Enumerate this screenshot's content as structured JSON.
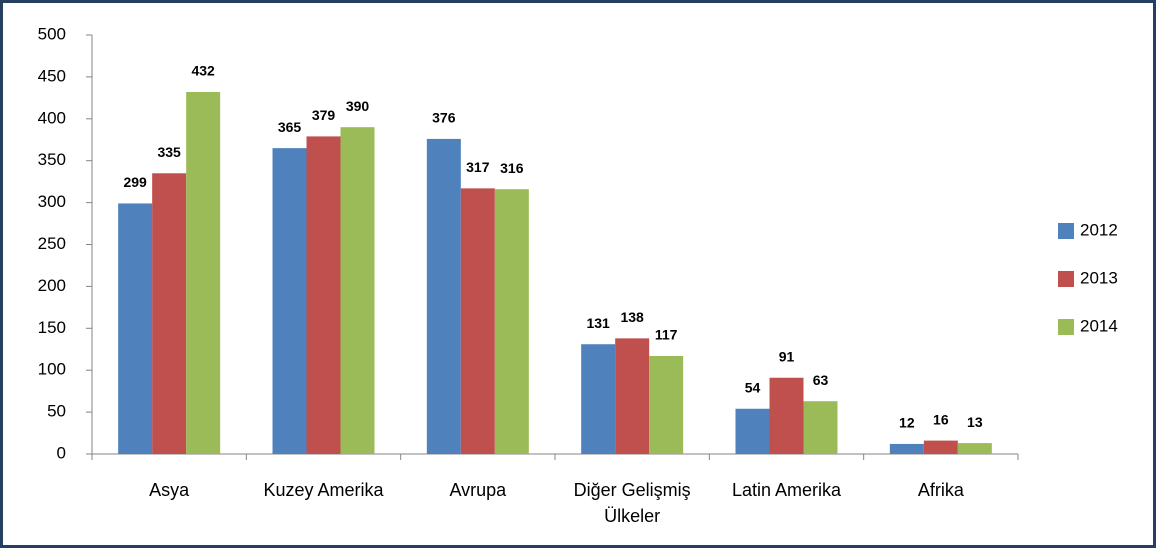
{
  "chart_data": {
    "type": "bar",
    "categories": [
      "Asya",
      "Kuzey Amerika",
      "Avrupa",
      "Diğer Gelişmiş Ülkeler",
      "Latin Amerika",
      "Afrika"
    ],
    "series": [
      {
        "name": "2012",
        "color": "#4f81bd",
        "values": [
          299,
          365,
          376,
          131,
          54,
          12
        ]
      },
      {
        "name": "2013",
        "color": "#c0504d",
        "values": [
          335,
          379,
          317,
          138,
          91,
          16
        ]
      },
      {
        "name": "2014",
        "color": "#9bbb59",
        "values": [
          432,
          390,
          316,
          117,
          63,
          13
        ]
      }
    ],
    "ylim": [
      0,
      500
    ],
    "yticks": [
      0,
      50,
      100,
      150,
      200,
      250,
      300,
      350,
      400,
      450,
      500
    ],
    "grid": false,
    "legend": "right"
  }
}
